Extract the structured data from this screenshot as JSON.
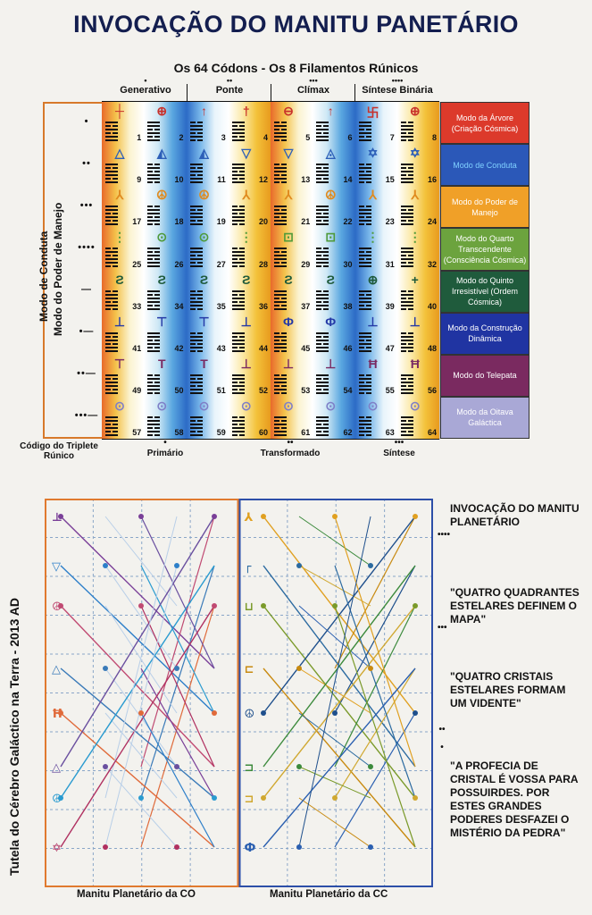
{
  "title": "INVOCAÇÃO DO MANITU PANETÁRIO",
  "subtitle": "Os 64 Códons - Os 8 Filamentos Rúnicos",
  "columns": [
    {
      "label": "Generativo",
      "dots": "•"
    },
    {
      "label": "Ponte",
      "dots": "••"
    },
    {
      "label": "Clímax",
      "dots": "•••"
    },
    {
      "label": "Síntese Binária",
      "dots": "••••"
    }
  ],
  "left_labels": {
    "line1": "Modo de Conduta",
    "line2": "Modo do Poder de Manejo"
  },
  "row_markers": [
    "•",
    "••",
    "•••",
    "••••",
    "—",
    "•—",
    "••—",
    "•••—"
  ],
  "codons": [
    1,
    2,
    3,
    4,
    5,
    6,
    7,
    8,
    9,
    10,
    11,
    12,
    13,
    14,
    15,
    16,
    17,
    18,
    19,
    20,
    21,
    22,
    23,
    24,
    25,
    26,
    27,
    28,
    29,
    30,
    31,
    32,
    33,
    34,
    35,
    36,
    37,
    38,
    39,
    40,
    41,
    42,
    43,
    44,
    45,
    46,
    47,
    48,
    49,
    50,
    51,
    52,
    53,
    54,
    55,
    56,
    57,
    58,
    59,
    60,
    61,
    62,
    63,
    64
  ],
  "glyph_rows": [
    [
      "┼",
      "⊕",
      "↑",
      "†",
      "⊖",
      "↑",
      "卐",
      "⊕"
    ],
    [
      "△",
      "◭",
      "◭",
      "▽",
      "▽",
      "◬",
      "✡",
      "✡"
    ],
    [
      "⅄",
      "☮",
      "☮",
      "⅄",
      "⅄",
      "☮",
      "⅄",
      "⅄"
    ],
    [
      "⋮",
      "⊙",
      "⊙",
      "⋮",
      "⊡",
      "⊡",
      "⋮",
      "⋮"
    ],
    [
      "Ƨ",
      "Ƨ",
      "Ƨ",
      "Ƨ",
      "Ƨ",
      "Ƨ",
      "⊕",
      "+"
    ],
    [
      "⊥",
      "⊤",
      "⊤",
      "⊥",
      "Ф",
      "Ф",
      "⊥",
      "⊥"
    ],
    [
      "⊤",
      "T",
      "T",
      "⊥",
      "⊥",
      "⊥",
      "Ħ",
      "Ħ"
    ],
    [
      "⊙",
      "⊙",
      "⊙",
      "⊙",
      "⊙",
      "⊙",
      "⊙",
      "⊙"
    ]
  ],
  "modes": [
    {
      "label": "Modo da Árvore (Criação Cósmica)",
      "color": "#dc3a2b",
      "text": "#ffffff"
    },
    {
      "label": "Modo de Conduta",
      "color": "#2b58b8",
      "text": "#7fd0ff"
    },
    {
      "label": "Modo do Poder de Manejo",
      "color": "#f0a028",
      "text": "#ffffff"
    },
    {
      "label": "Modo do Quarto Transcendente (Consciência Cósmica)",
      "color": "#6ca33e",
      "text": "#ffffff"
    },
    {
      "label": "Modo do Quinto Irresistível (Ordem Cósmica)",
      "color": "#1f5b3c",
      "text": "#ffffff"
    },
    {
      "label": "Modo da Construção Dinâmica",
      "color": "#2034a2",
      "text": "#ffffff"
    },
    {
      "label": "Modo do Telepata",
      "color": "#7a2a60",
      "text": "#ffffff"
    },
    {
      "label": "Modo da Oitava Galáctica",
      "color": "#a9a8d6",
      "text": "#ffffff"
    }
  ],
  "footer": {
    "codigo": "Código do Triplete Rúnico",
    "primario": "Primário",
    "primario_dots": "•",
    "transformado": "Transformado",
    "transformado_dots": "••",
    "sintese": "Síntese",
    "sintese_dots": "•••"
  },
  "side_text": [
    "INVOCAÇÃO DO MANITU PLANETÁRIO",
    "\"QUATRO QUADRANTES ESTELARES DEFINEM O MAPA\"",
    "\"QUATRO CRISTAIS ESTELARES FORMAM UM VIDENTE\"",
    "\"A PROFECIA DE CRISTAL É VOSSA PARA POSSUIRDES. POR ESTES GRANDES PODERES DESFAZEI O MISTÉRIO DA PEDRA\""
  ],
  "side_dots": [
    "••••",
    "•••",
    "••",
    "•"
  ],
  "tutela": "Tutela do Cérebro Galáctico na Terra - 2013 AD",
  "bottom_left": "Manitu Planetário da CO",
  "bottom_right": "Manitu Planetário da CC",
  "colors": {
    "orange_frame": "#e07a2f",
    "blue_frame": "#2d4fa8",
    "title": "#131e4f"
  }
}
